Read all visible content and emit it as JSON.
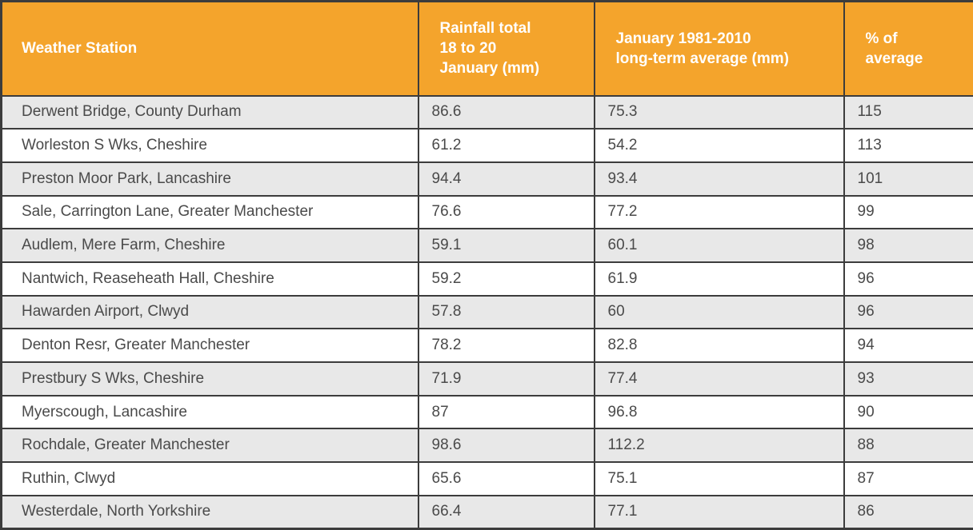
{
  "chart_data": {
    "type": "table",
    "columns": [
      "Weather Station",
      "Rainfall total 18 to 20 January (mm)",
      "January 1981-2010 long-term average (mm)",
      "% of average"
    ],
    "columns_wrapped": [
      "Weather Station",
      "Rainfall total\n18 to 20\nJanuary (mm)",
      "January 1981-2010\nlong-term average (mm)",
      "% of\naverage"
    ],
    "rows": [
      [
        "Derwent Bridge, County Durham",
        "86.6",
        "75.3",
        "115"
      ],
      [
        "Worleston S Wks, Cheshire",
        "61.2",
        "54.2",
        "113"
      ],
      [
        "Preston Moor Park, Lancashire",
        "94.4",
        "93.4",
        "101"
      ],
      [
        "Sale, Carrington Lane, Greater Manchester",
        "76.6",
        "77.2",
        "99"
      ],
      [
        "Audlem, Mere Farm, Cheshire",
        "59.1",
        "60.1",
        "98"
      ],
      [
        "Nantwich, Reaseheath Hall, Cheshire",
        "59.2",
        "61.9",
        "96"
      ],
      [
        "Hawarden Airport, Clwyd",
        "57.8",
        "60",
        "96"
      ],
      [
        "Denton Resr, Greater Manchester",
        "78.2",
        "82.8",
        "94"
      ],
      [
        "Prestbury S Wks, Cheshire",
        "71.9",
        "77.4",
        "93"
      ],
      [
        "Myerscough, Lancashire",
        "87",
        "96.8",
        "90"
      ],
      [
        "Rochdale, Greater Manchester",
        "98.6",
        "112.2",
        "88"
      ],
      [
        "Ruthin, Clwyd",
        "65.6",
        "75.1",
        "87"
      ],
      [
        "Westerdale, North Yorkshire",
        "66.4",
        "77.1",
        "86"
      ]
    ]
  },
  "colors": {
    "header_bg": "#F4A42C",
    "header_text": "#FFFFFF",
    "row_alt_bg": "#E8E8E8",
    "row_bg": "#FFFFFF",
    "border": "#3C3C3C",
    "cell_text": "#4A4A4A"
  }
}
